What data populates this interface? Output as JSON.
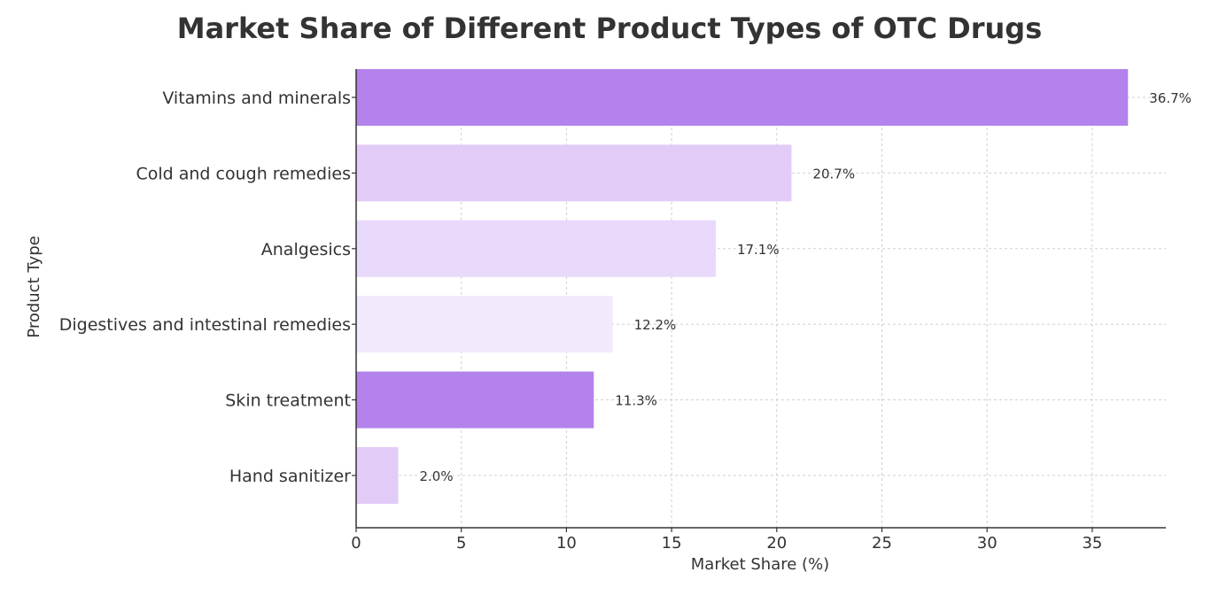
{
  "chart_data": {
    "type": "bar",
    "orientation": "horizontal",
    "title": "Market Share of Different Product Types of OTC Drugs",
    "xlabel": "Market Share (%)",
    "ylabel": "Product Type",
    "xlim": [
      0,
      38.5
    ],
    "xticks": [
      0,
      5,
      10,
      15,
      20,
      25,
      30,
      35
    ],
    "grid": true,
    "categories": [
      "Vitamins and minerals",
      "Cold and cough remedies",
      "Analgesics",
      "Digestives and intestinal remedies",
      "Skin treatment",
      "Hand sanitizer"
    ],
    "values": [
      36.7,
      20.7,
      17.1,
      12.2,
      11.3,
      2.0
    ],
    "data_labels": [
      "36.7%",
      "20.7%",
      "17.1%",
      "12.2%",
      "11.3%",
      "2.0%"
    ],
    "colors": [
      "#b382ec",
      "#e2cbf7",
      "#e9d9fa",
      "#f2e9fc",
      "#b382ec",
      "#e2cbf7"
    ]
  }
}
